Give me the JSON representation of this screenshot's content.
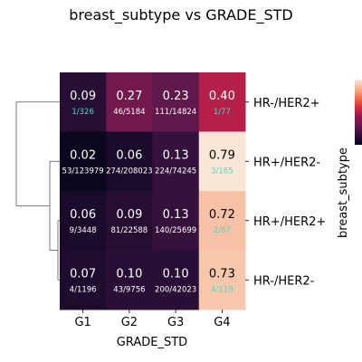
{
  "chart_data": {
    "type": "heatmap",
    "title": "breast_subtype vs GRADE_STD",
    "xlabel": "GRADE_STD",
    "ylabel": "breast_subtype",
    "x_categories": [
      "G1",
      "G2",
      "G3",
      "G4"
    ],
    "y_categories": [
      "HR-/HER2+",
      "HR+/HER2-",
      "HR+/HER2+",
      "HR-/HER2-"
    ],
    "values": [
      [
        0.09,
        0.27,
        0.23,
        0.4
      ],
      [
        0.02,
        0.06,
        0.13,
        0.79
      ],
      [
        0.06,
        0.09,
        0.13,
        0.72
      ],
      [
        0.07,
        0.1,
        0.1,
        0.73
      ]
    ],
    "value_labels": [
      [
        "0.09",
        "0.27",
        "0.23",
        "0.40"
      ],
      [
        "0.02",
        "0.06",
        "0.13",
        "0.79"
      ],
      [
        "0.06",
        "0.09",
        "0.13",
        "0.72"
      ],
      [
        "0.07",
        "0.10",
        "0.10",
        "0.73"
      ]
    ],
    "count_labels": [
      [
        "1/326",
        "46/5184",
        "111/14824",
        "1/77"
      ],
      [
        "53/123979",
        "274/208023",
        "224/74245",
        "3/165"
      ],
      [
        "9/3448",
        "81/22588",
        "140/25699",
        "2/67"
      ],
      [
        "4/1196",
        "43/9756",
        "200/42023",
        "4/119"
      ]
    ],
    "color_scale": "rocket",
    "color_range": [
      0,
      0.8
    ],
    "colorbar": true,
    "row_dendrogram": true,
    "dendrogram_order": [
      "HR+/HER2-",
      "HR+/HER2+",
      "HR-/HER2-",
      "HR-/HER2+"
    ],
    "count_highlight_color": "#4fd6c4"
  }
}
